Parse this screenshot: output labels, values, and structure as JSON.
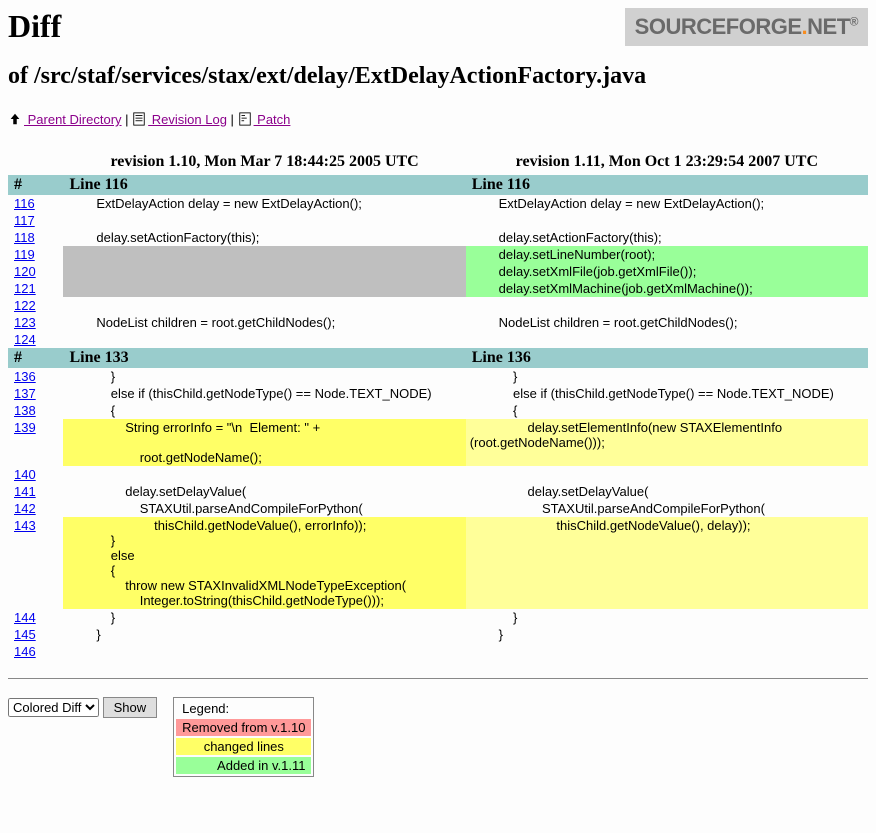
{
  "title_h1": "Diff",
  "title_h2": "of /src/staf/services/stax/ext/delay/ExtDelayActionFactory.java",
  "logo": {
    "text1": "SOURCEFORGE",
    "dot": ".",
    "text2": "NET",
    "reg": "®"
  },
  "nav": {
    "parent": " Parent Directory",
    "revlog": "  Revision Log",
    "patch": "  Patch",
    "sep": " | "
  },
  "colors": {
    "header_bg": "#99cccc",
    "added_bg": "#99ff99",
    "removed_bg": "#bfbfbf",
    "changed_left_bg": "#ffff66",
    "changed_right_bg": "#ffff99",
    "removed_legend_bg": "#ff9999"
  },
  "revisions": {
    "left_header": "revision 1.10, Mon Mar 7 18:44:25 2005 UTC",
    "right_header": "revision 1.11, Mon Oct 1 23:29:54 2007 UTC"
  },
  "sections": [
    {
      "hash": "#",
      "left_label": "Line 116",
      "right_label": "Line 116",
      "rows": [
        {
          "num": "116",
          "l": "        ExtDelayAction delay = new ExtDelayAction();",
          "r": "        ExtDelayAction delay = new ExtDelayAction();",
          "type": "ctx"
        },
        {
          "num": "117",
          "l": "",
          "r": "",
          "type": "ctx"
        },
        {
          "num": "118",
          "l": "        delay.setActionFactory(this);",
          "r": "        delay.setActionFactory(this);",
          "type": "ctx"
        },
        {
          "num": "119",
          "l": "",
          "r": "        delay.setLineNumber(root);",
          "type": "add"
        },
        {
          "num": "120",
          "l": "",
          "r": "        delay.setXmlFile(job.getXmlFile());",
          "type": "add"
        },
        {
          "num": "121",
          "l": "",
          "r": "        delay.setXmlMachine(job.getXmlMachine());",
          "type": "add"
        },
        {
          "num": "122",
          "l": "",
          "r": "",
          "type": "ctx"
        },
        {
          "num": "123",
          "l": "        NodeList children = root.getChildNodes();",
          "r": "        NodeList children = root.getChildNodes();",
          "type": "ctx"
        },
        {
          "num": "124",
          "l": "",
          "r": "",
          "type": "ctx"
        }
      ]
    },
    {
      "hash": "#",
      "left_label": "Line 133",
      "right_label": "Line 136",
      "rows": [
        {
          "num": "136",
          "l": "            }",
          "r": "            }",
          "type": "ctx"
        },
        {
          "num": "137",
          "l": "            else if (thisChild.getNodeType() == Node.TEXT_NODE)",
          "r": "            else if (thisChild.getNodeType() == Node.TEXT_NODE)",
          "type": "ctx"
        },
        {
          "num": "138",
          "l": "            {",
          "r": "            {",
          "type": "ctx"
        },
        {
          "num": "139",
          "l": "                String errorInfo = \"\\n  Element: \" +\n\n                    root.getNodeName();",
          "r": "                delay.setElementInfo(new STAXElementInfo\n(root.getNodeName()));",
          "type": "chg"
        },
        {
          "num": "140",
          "l": "",
          "r": "",
          "type": "ctx"
        },
        {
          "num": "141",
          "l": "                delay.setDelayValue(",
          "r": "                delay.setDelayValue(",
          "type": "ctx"
        },
        {
          "num": "142",
          "l": "                    STAXUtil.parseAndCompileForPython(",
          "r": "                    STAXUtil.parseAndCompileForPython(",
          "type": "ctx"
        },
        {
          "num": "143",
          "l": "                        thisChild.getNodeValue(), errorInfo));\n            }\n            else\n            {\n                throw new STAXInvalidXMLNodeTypeException(\n                    Integer.toString(thisChild.getNodeType()));",
          "r": "                        thisChild.getNodeValue(), delay));",
          "type": "chg"
        },
        {
          "num": "144",
          "l": "            }",
          "r": "            }",
          "type": "ctx"
        },
        {
          "num": "145",
          "l": "        }",
          "r": "        }",
          "type": "ctx"
        },
        {
          "num": "146",
          "l": "",
          "r": "",
          "type": "ctx"
        }
      ]
    }
  ],
  "footer": {
    "select_value": "Colored Diff",
    "show_btn": "Show",
    "legend_title": "Legend:",
    "legend_removed": "Removed from v.1.10",
    "legend_changed": "changed lines",
    "legend_added": "Added in v.1.11"
  }
}
